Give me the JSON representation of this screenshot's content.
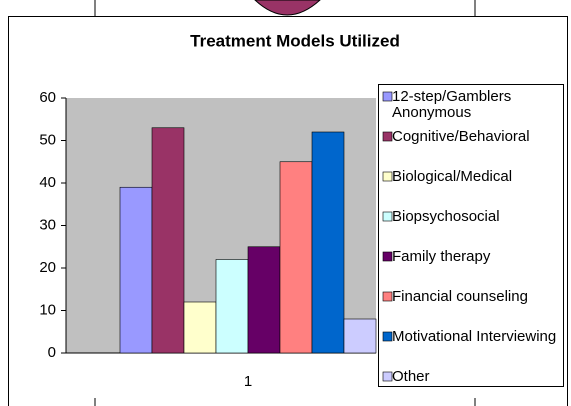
{
  "chart_data": {
    "type": "bar",
    "title": "Treatment Models Utilized",
    "categories": [
      "1"
    ],
    "series": [
      {
        "name": "12-step/Gamblers Anonymous",
        "color": "#9999ff",
        "values": [
          39
        ]
      },
      {
        "name": "Cognitive/Behavioral",
        "color": "#993366",
        "values": [
          53
        ]
      },
      {
        "name": "Biological/Medical",
        "color": "#ffffcc",
        "values": [
          12
        ]
      },
      {
        "name": "Biopsychosocial",
        "color": "#ccffff",
        "values": [
          22
        ]
      },
      {
        "name": "Family therapy",
        "color": "#660066",
        "values": [
          25
        ]
      },
      {
        "name": "Financial counseling",
        "color": "#ff8080",
        "values": [
          45
        ]
      },
      {
        "name": "Motivational Interviewing",
        "color": "#0066cc",
        "values": [
          52
        ]
      },
      {
        "name": "Other",
        "color": "#ccccff",
        "values": [
          8
        ]
      }
    ],
    "ylim": [
      0,
      60
    ],
    "yticks": [
      0,
      10,
      20,
      30,
      40,
      50,
      60
    ],
    "grid": false,
    "legend": "right"
  }
}
